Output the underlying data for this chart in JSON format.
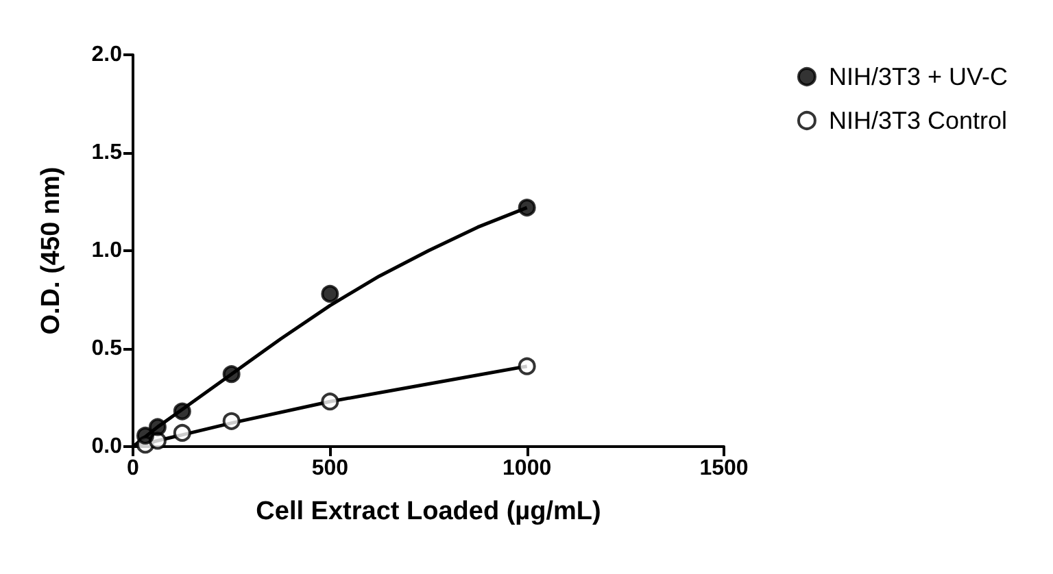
{
  "chart_data": {
    "type": "scatter",
    "xlabel": "Cell Extract Loaded (µg/mL)",
    "ylabel": "O.D. (450 nm)",
    "xlim": [
      0,
      1500
    ],
    "xticks": [
      0,
      500,
      1000,
      1500
    ],
    "ylim": [
      0,
      2.0
    ],
    "yticks": [
      {
        "value": 0,
        "label": "0.0"
      },
      {
        "value": 0.5,
        "label": "0.5"
      },
      {
        "value": 1.0,
        "label": "1.0"
      },
      {
        "value": 1.5,
        "label": "1.5"
      },
      {
        "value": 2.0,
        "label": "2.0"
      }
    ],
    "grid": false,
    "legend": "top right",
    "series": [
      {
        "name": "NIH/3T3 + UV-C",
        "marker": "circle",
        "color": "#000000",
        "x": [
          31.25,
          62.5,
          125,
          250,
          500,
          1000
        ],
        "values": [
          0.056,
          0.1,
          0.18,
          0.37,
          0.78,
          1.22
        ]
      },
      {
        "name": "NIH/3T3 Control",
        "marker": "open circle",
        "color": "#000000",
        "x": [
          31.25,
          62.5,
          125,
          250,
          500,
          1000
        ],
        "values": [
          0.01,
          0.03,
          0.07,
          0.13,
          0.23,
          0.41
        ]
      },
      {
        "type": "line",
        "marker": "none",
        "color": "#000000",
        "x": [
          0,
          31.25,
          62.5,
          125,
          250,
          375,
          500,
          625,
          750,
          875,
          1000
        ],
        "values": [
          0,
          0.05,
          0.1,
          0.19,
          0.37,
          0.55,
          0.72,
          0.87,
          1.0,
          1.12,
          1.22
        ]
      },
      {
        "type": "line",
        "marker": "none",
        "color": "#000000",
        "x": [
          0,
          125,
          250,
          500,
          750,
          1000
        ],
        "values": [
          0,
          0.06,
          0.12,
          0.23,
          0.32,
          0.41
        ]
      }
    ]
  }
}
